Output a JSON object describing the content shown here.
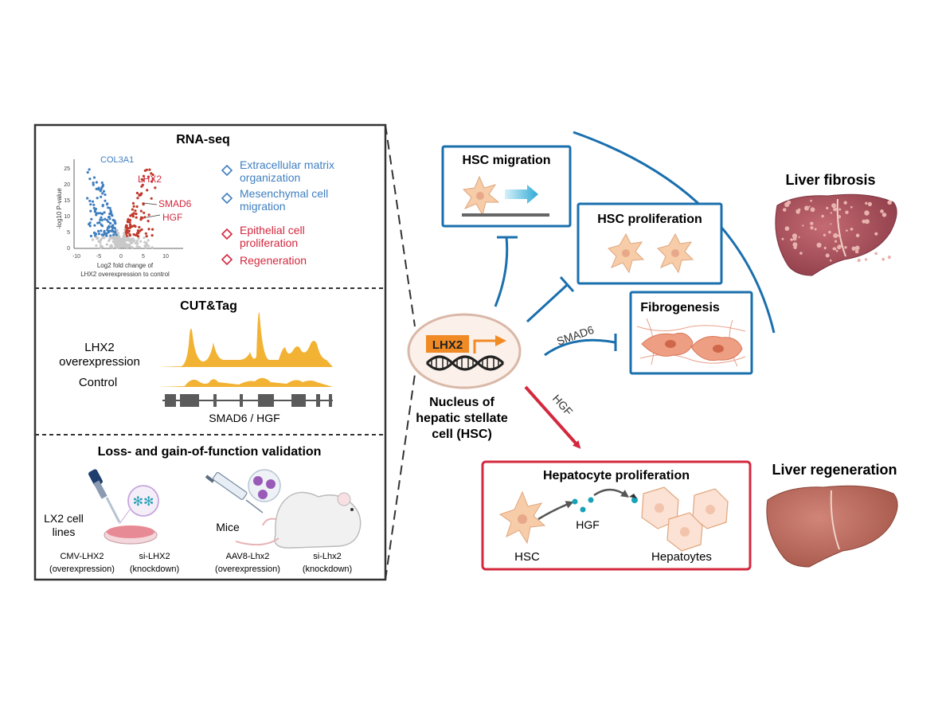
{
  "panel": {
    "rnaseq": {
      "title": "RNA-seq",
      "volcano": {
        "ylabel": "-log10 P-value",
        "xlabel_1": "Log2 fold change of",
        "xlabel_2": "LHX2 overexpression to control",
        "yticks": [
          "25",
          "20",
          "15",
          "10",
          "5",
          "0"
        ],
        "xticks": [
          "-10",
          "-5",
          "0",
          "5",
          "10"
        ],
        "gene_col3a1": "COL3A1",
        "gene_lhx2": "LHX2",
        "gene_smad6": "SMAD6",
        "gene_hgf": "HGF"
      },
      "terms": {
        "ecm_1": "Extracellular matrix",
        "ecm_2": "organization",
        "mes_1": "Mesenchymal cell",
        "mes_2": "migration",
        "epi_1": "Epithelial cell",
        "epi_2": "proliferation",
        "regen": "Regeneration"
      }
    },
    "cuttag": {
      "title": "CUT&Tag",
      "lhx2_1": "LHX2",
      "lhx2_2": "overexpression",
      "control": "Control",
      "gene": "SMAD6 / HGF"
    },
    "validation": {
      "title": "Loss- and gain-of-function validation",
      "lx2_1": "LX2 cell",
      "lx2_2": "lines",
      "mice": "Mice",
      "cmv_1": "CMV-LHX2",
      "cmv_2": "(overexpression)",
      "si_1": "si-LHX2",
      "si_2": "(knockdown)",
      "aav_1": "AAV8-Lhx2",
      "aav_2": "(overexpression)",
      "sil_1": "si-Lhx2",
      "sil_2": "(knockdown)"
    }
  },
  "diagram": {
    "hsc_migration": "HSC migration",
    "hsc_proliferation": "HSC proliferation",
    "fibrogenesis": "Fibrogenesis",
    "liver_fibrosis": "Liver fibrosis",
    "liver_regeneration": "Liver regeneration",
    "lhx2": "LHX2",
    "nucleus_1": "Nucleus of",
    "nucleus_2": "hepatic stellate",
    "nucleus_3": "cell (HSC)",
    "smad6": "SMAD6",
    "hgf_arrow": "HGF",
    "hepatocyte_proliferation": "Hepatocyte proliferation",
    "hsc": "HSC",
    "hgf": "HGF",
    "hepatocytes": "Hepatoytes"
  },
  "colors": {
    "blue": "#1a6fad",
    "red": "#d3283e",
    "orange": "#f08a24",
    "yellow": "#f2b233",
    "cell": "#f6cda8"
  }
}
